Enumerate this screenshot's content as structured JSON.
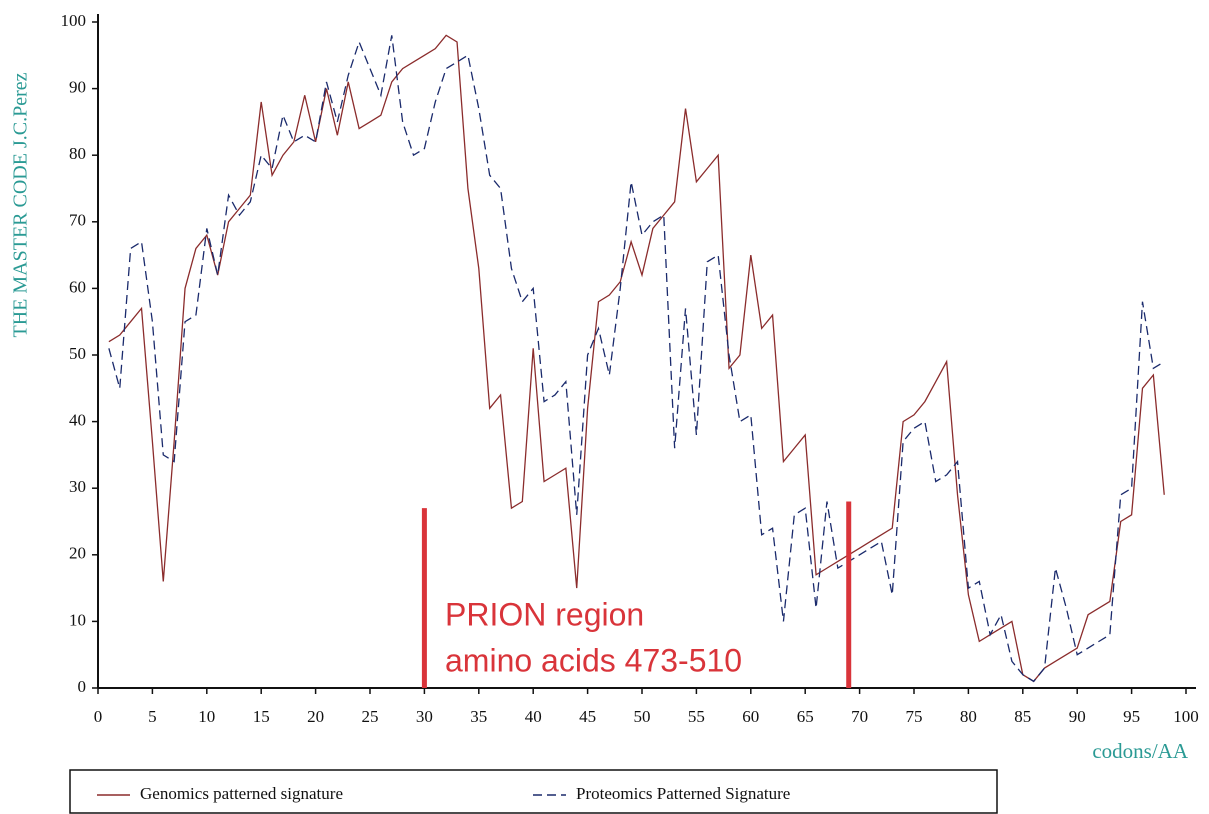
{
  "chart_data": {
    "type": "line",
    "ylabel": "THE MASTER CODE J.C.Perez",
    "xlabel": "codons/AA",
    "annotation": {
      "lines": [
        "PRION region",
        "amino acids 473-510"
      ],
      "color": "#d9343a",
      "markers": [
        {
          "x": 30,
          "top": 27
        },
        {
          "x": 69,
          "top": 28
        }
      ]
    },
    "xlim": [
      0,
      100
    ],
    "ylim": [
      0,
      100
    ],
    "xticks": [
      0,
      5,
      10,
      15,
      20,
      25,
      30,
      35,
      40,
      45,
      50,
      55,
      60,
      65,
      70,
      75,
      80,
      85,
      90,
      95,
      100
    ],
    "yticks": [
      0,
      10,
      20,
      30,
      40,
      50,
      60,
      70,
      80,
      90,
      100
    ],
    "x": [
      1,
      2,
      3,
      4,
      5,
      6,
      7,
      8,
      9,
      10,
      11,
      12,
      13,
      14,
      15,
      16,
      17,
      18,
      19,
      20,
      21,
      22,
      23,
      24,
      25,
      26,
      27,
      28,
      29,
      30,
      31,
      32,
      33,
      34,
      35,
      36,
      37,
      38,
      39,
      40,
      41,
      42,
      43,
      44,
      45,
      46,
      47,
      48,
      49,
      50,
      51,
      52,
      53,
      54,
      55,
      56,
      57,
      58,
      59,
      60,
      61,
      62,
      63,
      64,
      65,
      66,
      67,
      68,
      69,
      70,
      71,
      72,
      73,
      74,
      75,
      76,
      77,
      78,
      79,
      80,
      81,
      82,
      83,
      84,
      85,
      86,
      87,
      88,
      89,
      90,
      91,
      92,
      93,
      94,
      95,
      96,
      97,
      98
    ],
    "series": [
      {
        "name": "Genomics patterned signature",
        "color": "#8b2c2c",
        "dash": false,
        "values": [
          52,
          53,
          55,
          57,
          37,
          16,
          37,
          60,
          66,
          68,
          62,
          70,
          72,
          74,
          88,
          77,
          80,
          82,
          89,
          82,
          90,
          83,
          91,
          84,
          85,
          86,
          91,
          93,
          94,
          95,
          96,
          98,
          97,
          75,
          63,
          42,
          44,
          27,
          28,
          51,
          31,
          32,
          33,
          15,
          42,
          58,
          59,
          61,
          67,
          62,
          69,
          71,
          73,
          87,
          76,
          78,
          80,
          48,
          50,
          65,
          54,
          56,
          34,
          36,
          38,
          17,
          18,
          19,
          20,
          21,
          22,
          23,
          24,
          40,
          41,
          43,
          46,
          49,
          29,
          14,
          7,
          8,
          9,
          10,
          2,
          1,
          3,
          4,
          5,
          6,
          11,
          12,
          13,
          25,
          26,
          45,
          47,
          29
        ]
      },
      {
        "name": "Proteomics Patterned Signature",
        "color": "#1a2a6c",
        "dash": true,
        "values": [
          51,
          45,
          66,
          67,
          55,
          35,
          34,
          55,
          56,
          69,
          62,
          74,
          71,
          73,
          80,
          78,
          86,
          82,
          83,
          82,
          91,
          85,
          92,
          97,
          93,
          89,
          98,
          85,
          80,
          81,
          88,
          93,
          94,
          95,
          87,
          77,
          75,
          63,
          58,
          60,
          43,
          44,
          46,
          26,
          50,
          54,
          47,
          60,
          76,
          68,
          70,
          71,
          36,
          57,
          38,
          64,
          65,
          50,
          40,
          41,
          23,
          24,
          10,
          26,
          27,
          12,
          28,
          18,
          19,
          20,
          21,
          22,
          14,
          37,
          39,
          40,
          31,
          32,
          34,
          15,
          16,
          8,
          11,
          4,
          2,
          1,
          3,
          18,
          12,
          5,
          6,
          7,
          8,
          29,
          30,
          58,
          48,
          49
        ]
      }
    ]
  }
}
